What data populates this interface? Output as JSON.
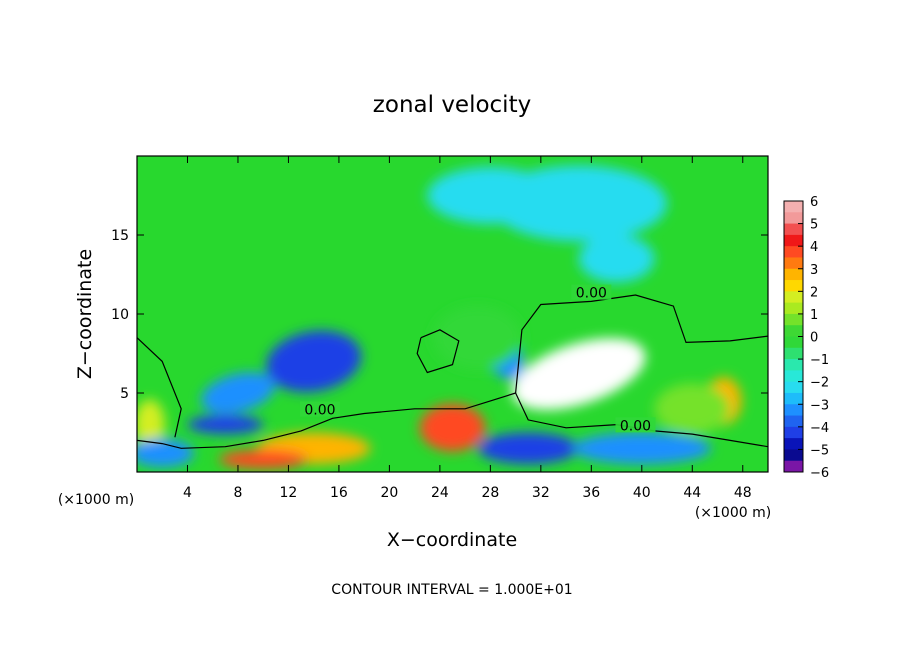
{
  "chart_data": {
    "type": "heatmap",
    "title": "zonal velocity",
    "xlabel": "X−coordinate",
    "ylabel": "Z−coordinate",
    "x_unit": "(×1000 m)",
    "y_unit": "(×1000 m)",
    "xlim": [
      0,
      50
    ],
    "ylim": [
      0,
      20
    ],
    "x_ticks": [
      4,
      8,
      12,
      16,
      20,
      24,
      28,
      32,
      36,
      40,
      44,
      48
    ],
    "y_ticks": [
      5,
      10,
      15
    ],
    "x_tick_labels": [
      "4",
      "8",
      "12",
      "16",
      "20",
      "24",
      "28",
      "32",
      "36",
      "40",
      "44",
      "48"
    ],
    "y_tick_labels": [
      "5",
      "10",
      "15"
    ],
    "colorbar": {
      "range": [
        -6,
        6
      ],
      "ticks": [
        6,
        5,
        4,
        3,
        2,
        1,
        0,
        -1,
        -2,
        -3,
        -4,
        -5,
        -6
      ],
      "tick_labels": [
        "6",
        "5",
        "4",
        "3",
        "2",
        "1",
        "0",
        "−1",
        "−2",
        "−3",
        "−4",
        "−5",
        "−6"
      ]
    },
    "contour_level_labels": [
      "0.00",
      "0.00",
      "0.00"
    ],
    "contour_interval_text": "CONTOUR INTERVAL = 1.000E+01",
    "features": [
      {
        "x": 35,
        "z": 6.2,
        "value": 6.5,
        "note": "strong positive jet core"
      },
      {
        "x": 25,
        "z": 2.8,
        "value": 4.5
      },
      {
        "x": 46.5,
        "z": 4.5,
        "value": 3.5
      },
      {
        "x": 14,
        "z": 1.5,
        "value": 3
      },
      {
        "x": 10,
        "z": 0.8,
        "value": 4
      },
      {
        "x": 1,
        "z": 3,
        "value": 2
      },
      {
        "x": 14,
        "z": 7,
        "value": -4
      },
      {
        "x": 8,
        "z": 5,
        "value": -3
      },
      {
        "x": 7,
        "z": 3,
        "value": -4
      },
      {
        "x": 29,
        "z": 7.5,
        "value": -2.5
      },
      {
        "x": 31,
        "z": 1.5,
        "value": -4
      },
      {
        "x": 40,
        "z": 1.5,
        "value": -3
      },
      {
        "x": 35,
        "z": 17,
        "value": -2
      },
      {
        "x": 28,
        "z": 17.5,
        "value": -1.5
      },
      {
        "x": 38,
        "z": 13.5,
        "value": -1.5
      },
      {
        "x": 27,
        "z": 8.5,
        "value": 0.5
      },
      {
        "x": 44,
        "z": 4,
        "value": 1.5
      },
      {
        "x": 2,
        "z": 1.2,
        "value": -3
      }
    ]
  }
}
